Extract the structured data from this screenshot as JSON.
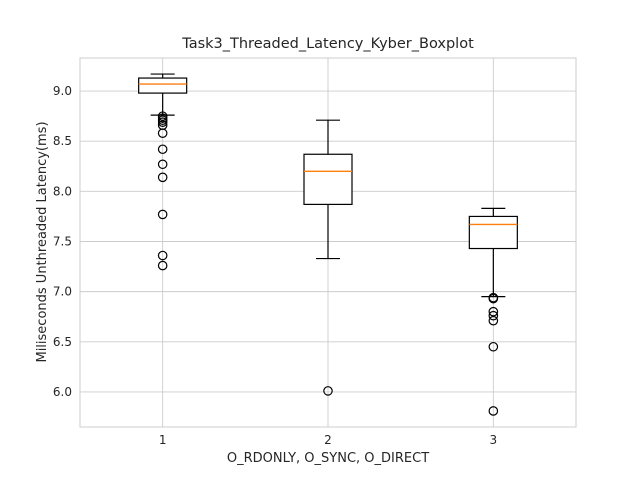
{
  "chart_data": {
    "type": "boxplot",
    "title": "Task3_Threaded_Latency_Kyber_Boxplot",
    "xlabel": "O_RDONLY, O_SYNC, O_DIRECT",
    "ylabel": "Miliseconds Unthreaded Latency(ms)",
    "ylim": [
      5.65,
      9.33
    ],
    "yticks": [
      6.0,
      6.5,
      7.0,
      7.5,
      8.0,
      8.5,
      9.0
    ],
    "ytick_labels": [
      "6.0",
      "6.5",
      "7.0",
      "7.5",
      "8.0",
      "8.5",
      "9.0"
    ],
    "grid": true,
    "categories": [
      "1",
      "2",
      "3"
    ],
    "boxes": [
      {
        "label": "1",
        "whisker_low": 8.76,
        "q1": 8.98,
        "median": 9.07,
        "q3": 9.13,
        "whisker_high": 9.17,
        "fliers": [
          8.75,
          8.73,
          8.71,
          8.69,
          8.66,
          8.58,
          8.42,
          8.27,
          8.14,
          7.77,
          7.36,
          7.26
        ]
      },
      {
        "label": "2",
        "whisker_low": 7.33,
        "q1": 7.87,
        "median": 8.2,
        "q3": 8.37,
        "whisker_high": 8.71,
        "fliers": [
          6.01
        ]
      },
      {
        "label": "3",
        "whisker_low": 6.95,
        "q1": 7.43,
        "median": 7.67,
        "q3": 7.75,
        "whisker_high": 7.83,
        "fliers": [
          6.94,
          6.93,
          6.8,
          6.76,
          6.71,
          6.45,
          5.81
        ]
      }
    ]
  }
}
